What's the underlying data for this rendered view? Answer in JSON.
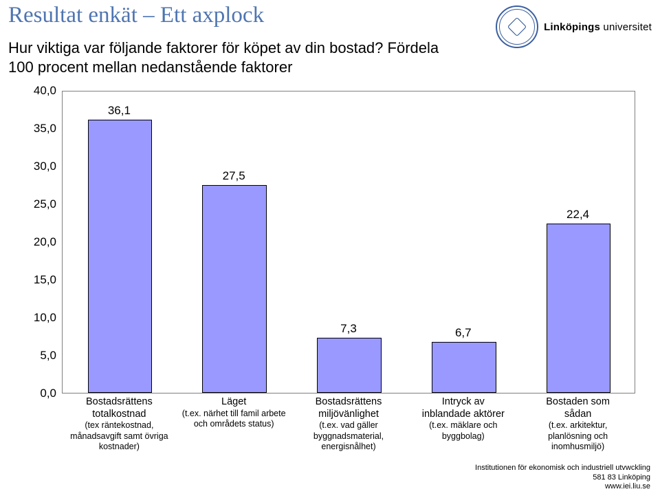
{
  "page_title": "Resultat enkät – Ett axplock",
  "subtitle": "Hur viktiga var följande faktorer för köpet av din bostad? Fördela 100 procent mellan nedanstående faktorer",
  "logo_text_bold": "Linköpings",
  "logo_text_rest": " universitet",
  "logo_seal_top": "LINKÖPINGS UNIVERSITET",
  "footer_line1": "Institutionen för ekonomisk och industriell utvwckling",
  "footer_line2": "581 83 Linköping",
  "footer_line3": "www.iei.liu.se",
  "chart": {
    "type": "bar",
    "background_color": "#ffffff",
    "border_color": "#7f7f7f",
    "bar_fill": "#9999ff",
    "bar_border": "#000000",
    "bar_width_ratio": 0.56,
    "ylim": [
      0,
      40
    ],
    "ytick_step": 5,
    "yticks": [
      "0,0",
      "5,0",
      "10,0",
      "15,0",
      "20,0",
      "25,0",
      "30,0",
      "35,0",
      "40,0"
    ],
    "label_fontsize": 17,
    "tick_fontsize": 17,
    "cat_fontsize": 14.5,
    "cat_note_fontsize": 12.5,
    "title_color": "#4f75b1",
    "title_fontsize": 33,
    "categories": [
      {
        "label_line1": "Bostadsrättens",
        "label_line2": "totalkostnad",
        "note": "(tex räntekostnad, månadsavgift samt övriga kostnader)",
        "value": 36.1,
        "value_label": "36,1"
      },
      {
        "label_line1": "Läget",
        "label_line2": "",
        "note": "(t.ex. närhet till famil arbete och områdets status)",
        "value": 27.5,
        "value_label": "27,5"
      },
      {
        "label_line1": "Bostadsrättens",
        "label_line2": "miljövänlighet",
        "note": "(t.ex. vad gäller byggnadsmaterial, energisnålhet)",
        "value": 7.3,
        "value_label": "7,3"
      },
      {
        "label_line1": "Intryck av",
        "label_line2": "inblandade aktörer",
        "note": "(t.ex. mäklare och byggbolag)",
        "value": 6.7,
        "value_label": "6,7"
      },
      {
        "label_line1": "Bostaden som",
        "label_line2": "sådan",
        "note": "(t.ex. arkitektur, planlösning och inomhusmiljö)",
        "value": 22.4,
        "value_label": "22,4"
      }
    ]
  }
}
